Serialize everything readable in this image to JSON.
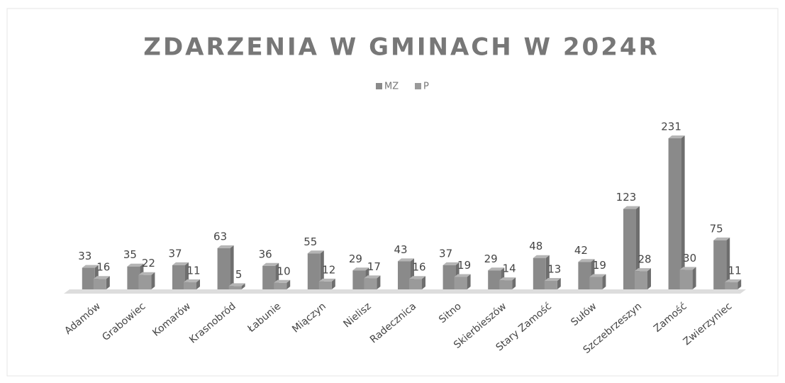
{
  "chart_data": {
    "type": "bar",
    "title": "ZDARZENIA W GMINACH W 2024R",
    "categories": [
      "Adamów",
      "Grabowiec",
      "Komarów",
      "Krasnobród",
      "Łabunie",
      "Miączyn",
      "Nielisz",
      "Radecznica",
      "Sitno",
      "Skierbieszów",
      "Stary Zamość",
      "Sułów",
      "Szczebrzeszyn",
      "Zamość",
      "Zwierzyniec"
    ],
    "series": [
      {
        "name": "MZ",
        "color": "#8a8a8a",
        "values": [
          33,
          35,
          37,
          63,
          36,
          55,
          29,
          43,
          37,
          29,
          48,
          42,
          123,
          231,
          75
        ]
      },
      {
        "name": "P",
        "color": "#9a9a9a",
        "values": [
          16,
          22,
          11,
          5,
          10,
          12,
          17,
          16,
          19,
          14,
          13,
          19,
          28,
          30,
          11
        ]
      }
    ],
    "legend": "top"
  }
}
